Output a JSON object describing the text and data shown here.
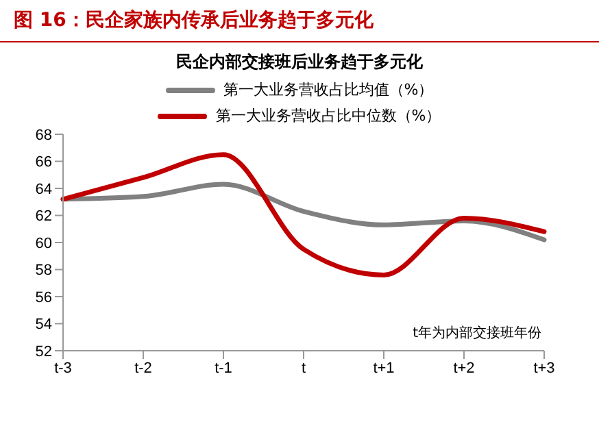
{
  "chart_data": {
    "type": "line",
    "title": "图 16：民企家族内传承后业务趋于多元化",
    "subtitle": "民企内部交接班后业务趋于多元化",
    "categories": [
      "t-3",
      "t-2",
      "t-1",
      "t",
      "t+1",
      "t+2",
      "t+3"
    ],
    "series": [
      {
        "name": "第一大业务营收占比均值（%）",
        "color": "#808080",
        "values": [
          63.2,
          63.4,
          64.3,
          62.3,
          61.3,
          61.6,
          60.2
        ]
      },
      {
        "name": "第一大业务营收占比中位数（%）",
        "color": "#c00000",
        "values": [
          63.2,
          64.8,
          66.5,
          59.5,
          57.6,
          61.8,
          60.8
        ]
      }
    ],
    "ylim": [
      52,
      68
    ],
    "yticks": [
      52,
      54,
      56,
      58,
      60,
      62,
      64,
      66,
      68
    ],
    "grid": false,
    "legend": "top",
    "marker": "none",
    "line_style": "solid",
    "annotations": [
      "t年为内部交接班年份"
    ]
  }
}
